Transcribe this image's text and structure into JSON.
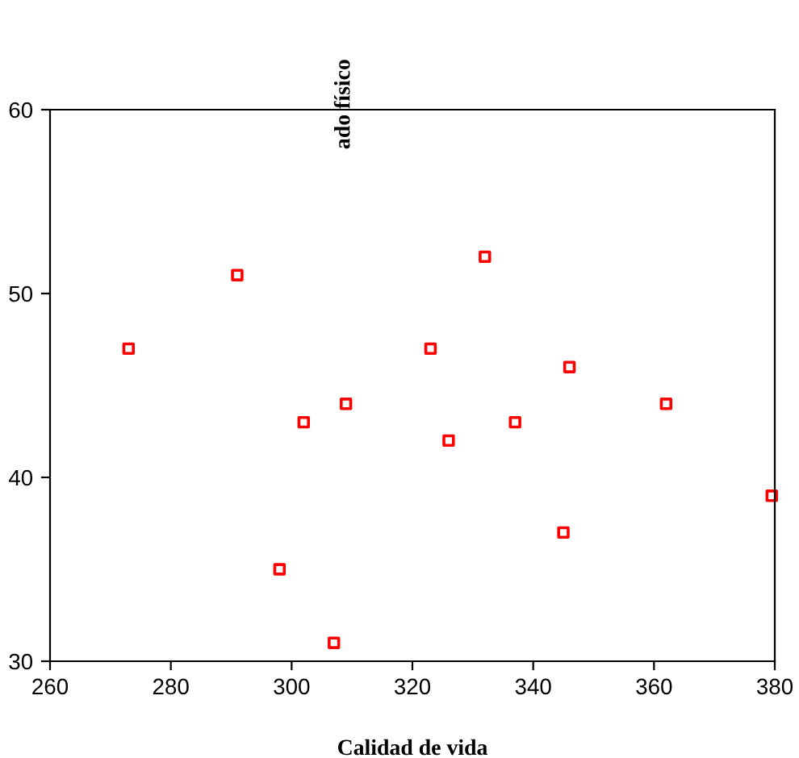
{
  "chart_data": {
    "type": "scatter",
    "xlabel": "Calidad de vida",
    "ylabel": "ado físico",
    "x": [
      273,
      291,
      302,
      309,
      298,
      307,
      323,
      326,
      332,
      337,
      345,
      346,
      362,
      379.5
    ],
    "values": [
      47,
      51,
      43,
      44,
      35,
      31,
      47,
      42,
      52,
      43,
      37,
      46,
      44,
      39
    ],
    "color": "#ff0000",
    "marker": "square",
    "grid": false,
    "xlim": [
      260,
      380
    ],
    "xticks": [
      260,
      280,
      300,
      320,
      340,
      360,
      380
    ],
    "ylim": [
      30,
      60
    ],
    "yticks": [
      30,
      40,
      50,
      60
    ]
  }
}
